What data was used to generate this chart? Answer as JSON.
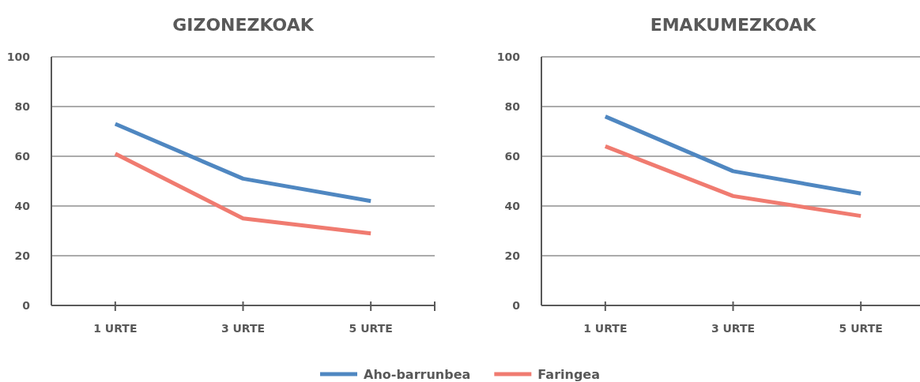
{
  "chart_data": [
    {
      "type": "line",
      "title": "GIZONEZKOAK",
      "categories": [
        "1 URTE",
        "3 URTE",
        "5 URTE"
      ],
      "series": [
        {
          "name": "Aho-barrunbea",
          "color": "#4f87c1",
          "values": [
            73,
            51,
            42
          ]
        },
        {
          "name": "Faringea",
          "color": "#f07b70",
          "values": [
            61,
            35,
            29
          ]
        }
      ],
      "ylim": [
        0,
        100
      ],
      "yticks": [
        0,
        20,
        40,
        60,
        80,
        100
      ],
      "grid": "y",
      "legend": "bottom"
    },
    {
      "type": "line",
      "title": "EMAKUMEZKOAK",
      "categories": [
        "1 URTE",
        "3 URTE",
        "5 URTE"
      ],
      "series": [
        {
          "name": "Aho-barrunbea",
          "color": "#4f87c1",
          "values": [
            76,
            54,
            45
          ]
        },
        {
          "name": "Faringea",
          "color": "#f07b70",
          "values": [
            64,
            44,
            36
          ]
        }
      ],
      "ylim": [
        0,
        100
      ],
      "yticks": [
        0,
        20,
        40,
        60,
        80,
        100
      ],
      "grid": "y"
    }
  ]
}
